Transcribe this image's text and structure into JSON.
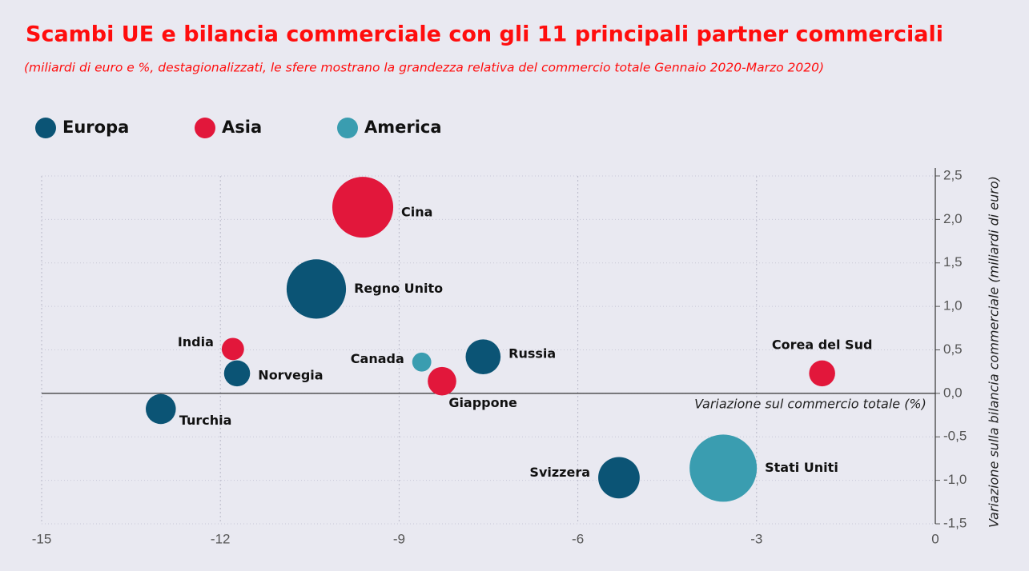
{
  "chart_data": {
    "type": "bubble",
    "title": "Scambi UE e bilancia commerciale con gli 11 principali partner commerciali",
    "subtitle": "(miliardi di euro e %, destagionalizzati, le sfere mostrano la grandezza relativa del commercio totale Gennaio 2020-Marzo 2020)",
    "xlabel": "Variazione sul commercio totale (%)",
    "ylabel": "Variazione sulla bilancia commerciale (miliardi di euro)",
    "xlim": [
      -15,
      0
    ],
    "xticks": [
      -15,
      -12,
      -9,
      -6,
      -3,
      0
    ],
    "ylim": [
      -1.5,
      2.5
    ],
    "yticks": [
      {
        "value": 2.5,
        "label": "2,5"
      },
      {
        "value": 2.0,
        "label": "2,0"
      },
      {
        "value": 1.5,
        "label": "1,5"
      },
      {
        "value": 1.0,
        "label": "1,0"
      },
      {
        "value": 0.5,
        "label": "0,5"
      },
      {
        "value": 0.0,
        "label": "0,0"
      },
      {
        "value": -0.5,
        "label": "-0,5"
      },
      {
        "value": -1.0,
        "label": "-1,0"
      },
      {
        "value": -1.5,
        "label": "-1,5"
      }
    ],
    "grid": true,
    "series": [
      {
        "name": "Europa",
        "color": "#0b5475",
        "labels": [
          "Regno Unito",
          "Norvegia",
          "Turchia",
          "Russia",
          "Svizzera"
        ],
        "x": [
          -10.39,
          -11.72,
          -13.0,
          -7.59,
          -5.31
        ],
        "values": [
          1.2,
          0.23,
          -0.18,
          0.42,
          -0.97
        ],
        "sizes": [
          78,
          15,
          20,
          27,
          38
        ]
      },
      {
        "name": "Asia",
        "color": "#e2173b",
        "labels": [
          "Cina",
          "India",
          "Giappone",
          "Corea del Sud"
        ],
        "x": [
          -9.61,
          -11.79,
          -8.28,
          -1.9
        ],
        "values": [
          2.14,
          0.51,
          0.14,
          0.23
        ],
        "sizes": [
          82,
          11,
          18,
          15
        ]
      },
      {
        "name": "America",
        "color": "#3a9db0",
        "labels": [
          "Canada",
          "Stati Uniti"
        ],
        "x": [
          -8.62,
          -3.56
        ],
        "values": [
          0.36,
          -0.86
        ],
        "sizes": [
          8,
          100
        ]
      }
    ]
  }
}
